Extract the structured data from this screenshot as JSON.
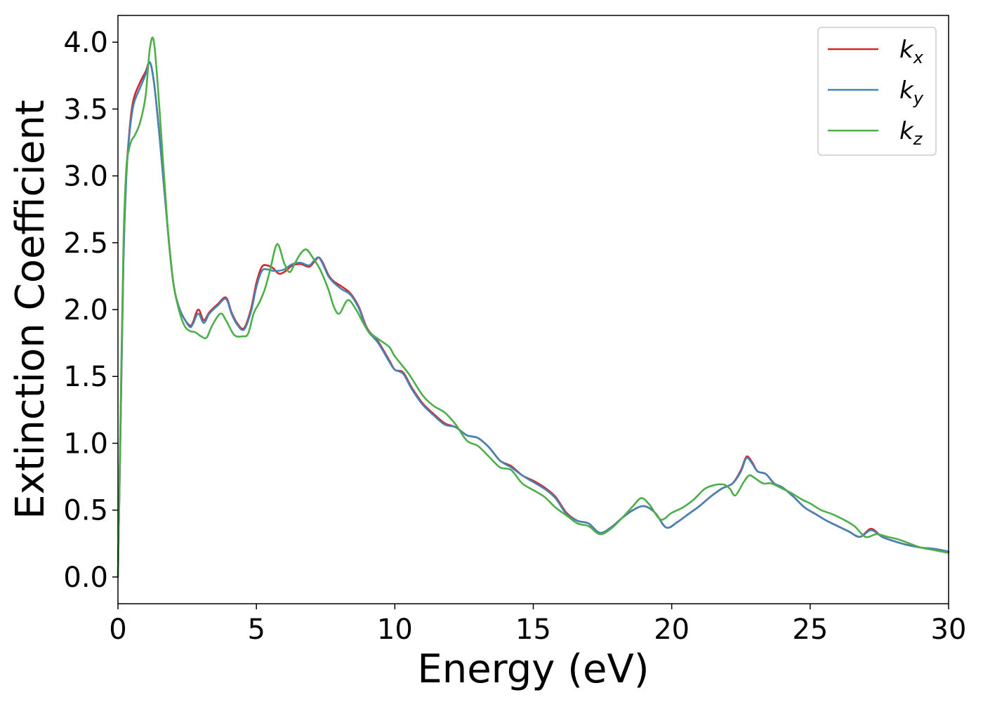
{
  "chart_data": {
    "type": "line",
    "title": "",
    "xlabel": "Energy (eV)",
    "ylabel": "Extinction Coefficient",
    "xlim": [
      0,
      30
    ],
    "ylim": [
      -0.2,
      4.2
    ],
    "xticks": [
      0,
      5,
      10,
      15,
      20,
      25,
      30
    ],
    "xtick_labels": [
      "0",
      "5",
      "10",
      "15",
      "20",
      "25",
      "30"
    ],
    "yticks": [
      0.0,
      0.5,
      1.0,
      1.5,
      2.0,
      2.5,
      3.0,
      3.5,
      4.0
    ],
    "ytick_labels": [
      "0.0",
      "0.5",
      "1.0",
      "1.5",
      "2.0",
      "2.5",
      "3.0",
      "3.5",
      "4.0"
    ],
    "grid": false,
    "legend_position": "top-right",
    "series": [
      {
        "name": "k",
        "subscript": "x",
        "color": "#d62728",
        "x": [
          0,
          0.1,
          0.2,
          0.3,
          0.4,
          0.5,
          0.6,
          0.8,
          1.0,
          1.15,
          1.3,
          1.5,
          1.8,
          2.0,
          2.2,
          2.4,
          2.6,
          2.7,
          2.9,
          3.1,
          3.3,
          3.6,
          3.9,
          4.1,
          4.3,
          4.55,
          4.8,
          5.0,
          5.2,
          5.4,
          5.6,
          5.8,
          6.0,
          6.3,
          6.6,
          6.9,
          7.1,
          7.25,
          7.4,
          7.6,
          7.8,
          8.1,
          8.4,
          8.7,
          9.0,
          9.4,
          9.8,
          10.0,
          10.3,
          10.6,
          11.0,
          11.4,
          11.8,
          12.2,
          12.6,
          13.0,
          13.4,
          13.8,
          14.2,
          14.6,
          15.0,
          15.4,
          15.8,
          16.2,
          16.6,
          17.0,
          17.4,
          17.8,
          18.2,
          18.6,
          19.0,
          19.4,
          19.8,
          20.2,
          20.6,
          21.0,
          21.4,
          21.8,
          22.2,
          22.5,
          22.7,
          22.9,
          23.1,
          23.4,
          23.7,
          24.0,
          24.4,
          24.8,
          25.2,
          25.6,
          26.0,
          26.4,
          26.8,
          27.2,
          27.6,
          28.0,
          28.5,
          29.0,
          29.5,
          30.0
        ],
        "y": [
          0.0,
          1.2,
          2.4,
          3.0,
          3.3,
          3.5,
          3.6,
          3.7,
          3.78,
          3.85,
          3.7,
          3.3,
          2.6,
          2.2,
          2.02,
          1.93,
          1.88,
          1.9,
          2.0,
          1.92,
          1.98,
          2.04,
          2.09,
          1.98,
          1.9,
          1.86,
          2.0,
          2.2,
          2.32,
          2.33,
          2.31,
          2.27,
          2.28,
          2.33,
          2.34,
          2.32,
          2.36,
          2.39,
          2.35,
          2.26,
          2.21,
          2.17,
          2.12,
          2.02,
          1.86,
          1.76,
          1.62,
          1.55,
          1.53,
          1.42,
          1.3,
          1.22,
          1.15,
          1.12,
          1.06,
          1.04,
          0.97,
          0.87,
          0.83,
          0.76,
          0.72,
          0.67,
          0.6,
          0.48,
          0.42,
          0.4,
          0.33,
          0.37,
          0.44,
          0.5,
          0.53,
          0.48,
          0.37,
          0.41,
          0.47,
          0.53,
          0.6,
          0.66,
          0.7,
          0.8,
          0.9,
          0.86,
          0.79,
          0.77,
          0.7,
          0.67,
          0.6,
          0.52,
          0.47,
          0.42,
          0.38,
          0.34,
          0.3,
          0.36,
          0.3,
          0.27,
          0.24,
          0.22,
          0.21,
          0.19
        ]
      },
      {
        "name": "k",
        "subscript": "y",
        "color": "#4682b4",
        "x": [
          0,
          0.1,
          0.2,
          0.3,
          0.4,
          0.5,
          0.6,
          0.8,
          1.0,
          1.15,
          1.3,
          1.5,
          1.8,
          2.0,
          2.2,
          2.4,
          2.6,
          2.7,
          2.9,
          3.1,
          3.3,
          3.6,
          3.9,
          4.1,
          4.3,
          4.55,
          4.8,
          5.0,
          5.2,
          5.4,
          5.6,
          5.8,
          6.0,
          6.3,
          6.6,
          6.9,
          7.1,
          7.25,
          7.4,
          7.6,
          7.8,
          8.1,
          8.4,
          8.7,
          9.0,
          9.4,
          9.8,
          10.0,
          10.3,
          10.6,
          11.0,
          11.4,
          11.8,
          12.2,
          12.6,
          13.0,
          13.4,
          13.8,
          14.2,
          14.6,
          15.0,
          15.4,
          15.8,
          16.2,
          16.6,
          17.0,
          17.4,
          17.8,
          18.2,
          18.6,
          19.0,
          19.4,
          19.8,
          20.2,
          20.6,
          21.0,
          21.4,
          21.8,
          22.2,
          22.5,
          22.7,
          22.9,
          23.1,
          23.4,
          23.7,
          24.0,
          24.4,
          24.8,
          25.2,
          25.6,
          26.0,
          26.4,
          26.8,
          27.2,
          27.6,
          28.0,
          28.5,
          29.0,
          29.5,
          30.0
        ],
        "y": [
          0.0,
          1.2,
          2.38,
          2.98,
          3.28,
          3.46,
          3.56,
          3.66,
          3.76,
          3.85,
          3.7,
          3.3,
          2.6,
          2.2,
          2.02,
          1.93,
          1.87,
          1.89,
          1.97,
          1.9,
          1.97,
          2.03,
          2.08,
          1.97,
          1.89,
          1.85,
          1.98,
          2.17,
          2.29,
          2.3,
          2.29,
          2.29,
          2.3,
          2.34,
          2.35,
          2.33,
          2.37,
          2.39,
          2.34,
          2.25,
          2.2,
          2.15,
          2.11,
          2.01,
          1.85,
          1.75,
          1.61,
          1.55,
          1.52,
          1.41,
          1.29,
          1.21,
          1.14,
          1.12,
          1.06,
          1.04,
          0.97,
          0.87,
          0.82,
          0.76,
          0.71,
          0.66,
          0.59,
          0.47,
          0.42,
          0.4,
          0.33,
          0.37,
          0.44,
          0.5,
          0.53,
          0.48,
          0.37,
          0.41,
          0.47,
          0.53,
          0.6,
          0.66,
          0.7,
          0.79,
          0.89,
          0.85,
          0.79,
          0.77,
          0.7,
          0.67,
          0.6,
          0.52,
          0.47,
          0.42,
          0.38,
          0.34,
          0.3,
          0.35,
          0.3,
          0.27,
          0.24,
          0.22,
          0.21,
          0.19
        ]
      },
      {
        "name": "k",
        "subscript": "z",
        "color": "#4daf4a",
        "x": [
          0,
          0.1,
          0.2,
          0.3,
          0.4,
          0.5,
          0.6,
          0.8,
          1.0,
          1.15,
          1.3,
          1.5,
          1.8,
          2.0,
          2.2,
          2.4,
          2.6,
          2.8,
          3.0,
          3.2,
          3.4,
          3.7,
          3.9,
          4.2,
          4.5,
          4.7,
          4.9,
          5.1,
          5.3,
          5.5,
          5.75,
          6.0,
          6.2,
          6.4,
          6.6,
          6.8,
          7.0,
          7.3,
          7.6,
          7.8,
          8.0,
          8.3,
          8.6,
          9.0,
          9.4,
          9.8,
          10.0,
          10.5,
          11.0,
          11.4,
          11.8,
          12.2,
          12.6,
          13.0,
          13.4,
          13.8,
          14.2,
          14.6,
          15.0,
          15.4,
          15.8,
          16.2,
          16.6,
          17.0,
          17.4,
          17.8,
          18.2,
          18.6,
          18.9,
          19.2,
          19.6,
          20.0,
          20.4,
          20.8,
          21.2,
          21.6,
          21.9,
          22.1,
          22.3,
          22.6,
          22.8,
          23.0,
          23.3,
          23.6,
          24.0,
          24.3,
          24.7,
          25.0,
          25.4,
          25.8,
          26.2,
          26.6,
          27.0,
          27.4,
          27.8,
          28.2,
          28.6,
          29.0,
          29.5,
          30.0
        ],
        "y": [
          0.0,
          1.3,
          2.5,
          3.05,
          3.2,
          3.27,
          3.3,
          3.4,
          3.6,
          3.95,
          4.0,
          3.5,
          2.6,
          2.2,
          2.0,
          1.88,
          1.84,
          1.83,
          1.8,
          1.79,
          1.88,
          1.97,
          1.92,
          1.81,
          1.8,
          1.82,
          1.97,
          2.05,
          2.15,
          2.3,
          2.49,
          2.35,
          2.28,
          2.35,
          2.42,
          2.45,
          2.4,
          2.3,
          2.15,
          2.02,
          1.97,
          2.07,
          2.0,
          1.85,
          1.78,
          1.72,
          1.65,
          1.52,
          1.36,
          1.28,
          1.23,
          1.14,
          1.02,
          0.98,
          0.9,
          0.82,
          0.8,
          0.7,
          0.65,
          0.6,
          0.52,
          0.46,
          0.4,
          0.38,
          0.32,
          0.36,
          0.44,
          0.53,
          0.59,
          0.54,
          0.43,
          0.48,
          0.52,
          0.58,
          0.66,
          0.69,
          0.69,
          0.66,
          0.61,
          0.71,
          0.76,
          0.74,
          0.7,
          0.7,
          0.66,
          0.63,
          0.58,
          0.55,
          0.5,
          0.47,
          0.43,
          0.38,
          0.3,
          0.32,
          0.3,
          0.28,
          0.25,
          0.22,
          0.2,
          0.18
        ]
      }
    ]
  }
}
